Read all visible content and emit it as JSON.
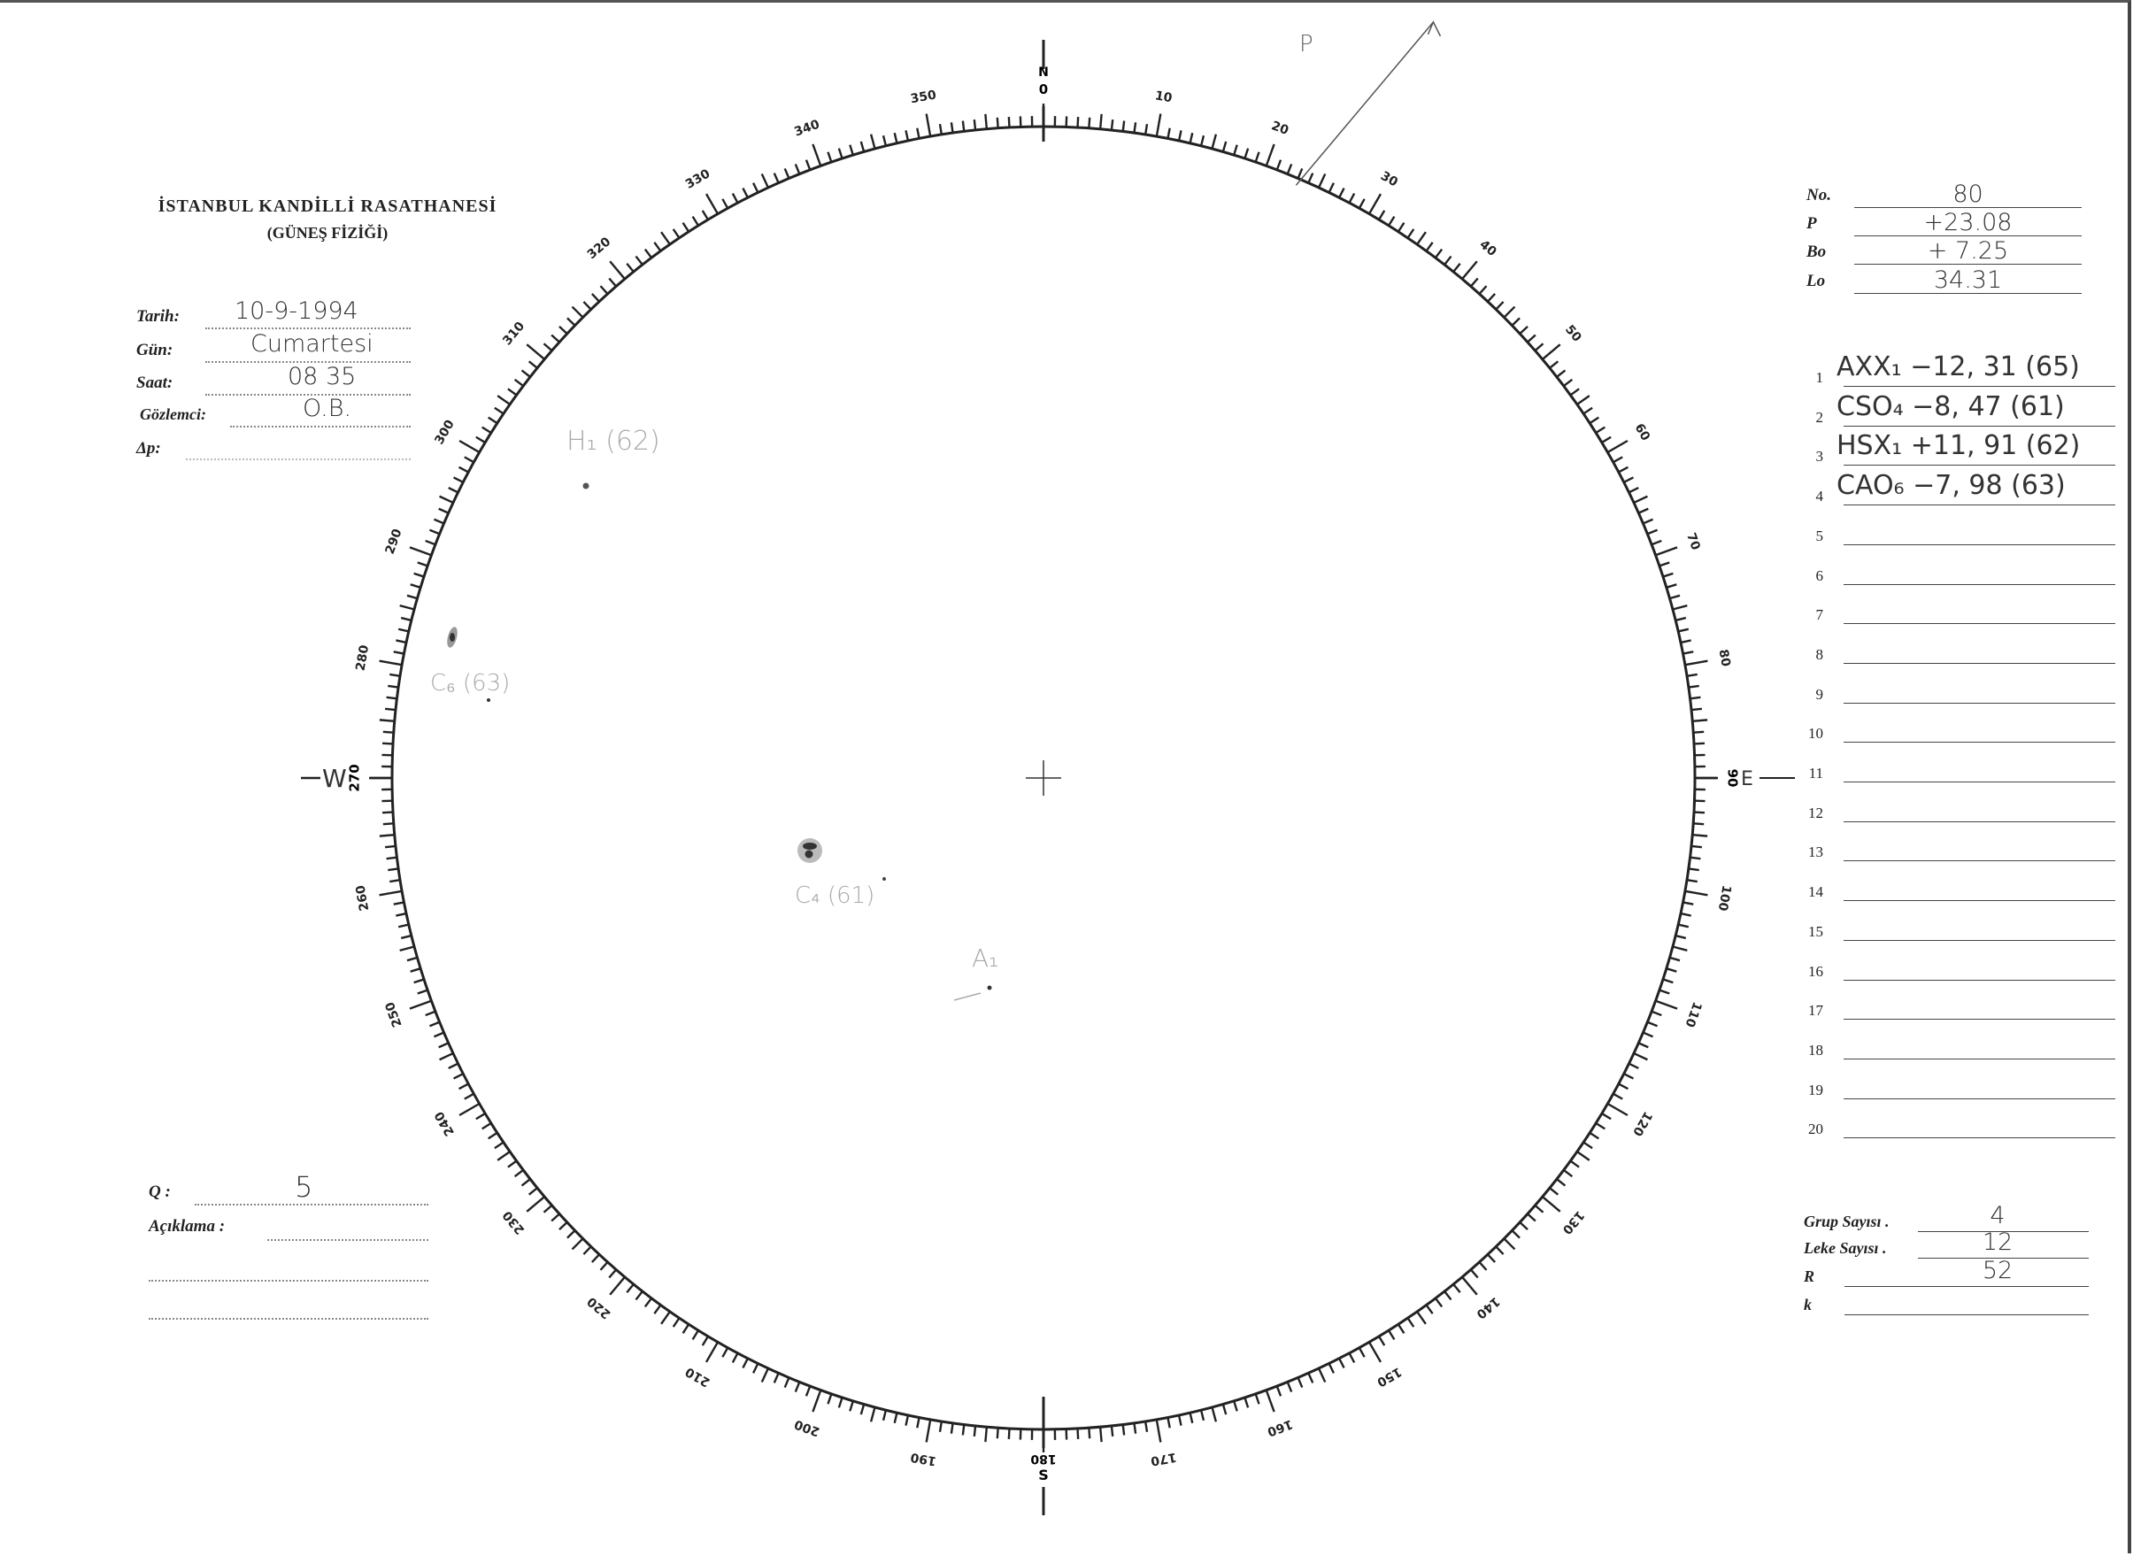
{
  "header": {
    "title": "İSTANBUL KANDİLLİ RASATHANESİ",
    "subtitle": "(GÜNEŞ FİZİĞİ)"
  },
  "observation": [
    {
      "label": "Tarih:",
      "value": "10-9-1994"
    },
    {
      "label": "Gün:",
      "value": "Cumartesi"
    },
    {
      "label": "Saat:",
      "value": "08 35"
    },
    {
      "label": "Gözlemci:",
      "value": "O.B."
    },
    {
      "label": "Δp:",
      "value": ""
    }
  ],
  "quality": {
    "q_label": "Q :",
    "q_value": "5",
    "note_label": "Açıklama :"
  },
  "parameters": [
    {
      "label": "No.",
      "value": "80"
    },
    {
      "label": "P",
      "value": "+23.08"
    },
    {
      "label": "Bo",
      "value": "+ 7.25"
    },
    {
      "label": "Lo",
      "value": "34.31"
    }
  ],
  "groups": [
    {
      "n": "1",
      "value": "AXX₁ −12, 31 (65)"
    },
    {
      "n": "2",
      "value": "CSO₄ −8, 47 (61)"
    },
    {
      "n": "3",
      "value": "HSX₁ +11, 91 (62)"
    },
    {
      "n": "4",
      "value": "CAO₆ −7, 98 (63)"
    },
    {
      "n": "5",
      "value": ""
    },
    {
      "n": "6",
      "value": ""
    },
    {
      "n": "7",
      "value": ""
    },
    {
      "n": "8",
      "value": ""
    },
    {
      "n": "9",
      "value": ""
    },
    {
      "n": "10",
      "value": ""
    },
    {
      "n": "11",
      "value": ""
    },
    {
      "n": "12",
      "value": ""
    },
    {
      "n": "13",
      "value": ""
    },
    {
      "n": "14",
      "value": ""
    },
    {
      "n": "15",
      "value": ""
    },
    {
      "n": "16",
      "value": ""
    },
    {
      "n": "17",
      "value": ""
    },
    {
      "n": "18",
      "value": ""
    },
    {
      "n": "19",
      "value": ""
    },
    {
      "n": "20",
      "value": ""
    }
  ],
  "summary": [
    {
      "label": "Grup Sayısı .",
      "value": "4"
    },
    {
      "label": "Leke Sayısı .",
      "value": "12"
    },
    {
      "label": "R",
      "value": "52"
    },
    {
      "label": "k",
      "value": ""
    }
  ],
  "dial": {
    "labels": [
      "0",
      "10",
      "20",
      "30",
      "40",
      "50",
      "60",
      "70",
      "80",
      "90",
      "100",
      "110",
      "120",
      "130",
      "140",
      "150",
      "160",
      "170",
      "180",
      "190",
      "200",
      "210",
      "220",
      "230",
      "240",
      "250",
      "260",
      "270",
      "280",
      "290",
      "300",
      "310",
      "320",
      "330",
      "340",
      "350"
    ],
    "north": "N",
    "south": "S",
    "east": "E",
    "west": "W",
    "p_label": "P",
    "p_angle_deg": 23.08
  },
  "sunspots": [
    {
      "group": "H₁ (62)"
    },
    {
      "group": "C₆ (63)"
    },
    {
      "group": "C₄ (61)"
    },
    {
      "group": "A₁"
    }
  ]
}
